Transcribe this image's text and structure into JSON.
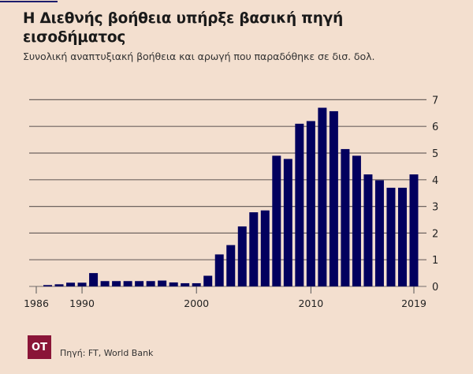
{
  "header": {
    "title": "Η Διεθνής βοήθεια υπήρξε βασική πηγή εισοδήματος",
    "subtitle": "Συνολική αναπτυξιακή βοήθεια και αρωγή που παραδόθηκε σε δισ. δολ."
  },
  "footer": {
    "logo_text": "OT",
    "source": "Πηγή: FT, World Bank"
  },
  "colors": {
    "background": "#f3dfcf",
    "bar": "#02005e",
    "gridline": "#6e6460",
    "logo": "#8a1538",
    "accent_line": "#1d1d6e"
  },
  "chart_data": {
    "type": "bar",
    "title": "Η Διεθνής βοήθεια υπήρξε βασική πηγή εισοδήματος",
    "subtitle": "Συνολική αναπτυξιακή βοήθεια και αρωγή που παραδόθηκε σε δισ. δολ.",
    "xlabel": "",
    "ylabel": "",
    "categories": [
      1986,
      1987,
      1988,
      1989,
      1990,
      1991,
      1992,
      1993,
      1994,
      1995,
      1996,
      1997,
      1998,
      1999,
      2000,
      2001,
      2002,
      2003,
      2004,
      2005,
      2006,
      2007,
      2008,
      2009,
      2010,
      2011,
      2012,
      2013,
      2014,
      2015,
      2016,
      2017,
      2018,
      2019
    ],
    "values": [
      0,
      0.05,
      0.08,
      0.14,
      0.14,
      0.5,
      0.2,
      0.2,
      0.2,
      0.2,
      0.2,
      0.22,
      0.15,
      0.12,
      0.12,
      0.4,
      1.2,
      1.55,
      2.25,
      2.78,
      2.85,
      4.9,
      4.78,
      6.1,
      6.2,
      6.7,
      6.57,
      5.15,
      4.9,
      4.2,
      3.98,
      3.7,
      3.7,
      4.2
    ],
    "x_ticks": [
      1986,
      1990,
      2000,
      2010,
      2019
    ],
    "y_ticks": [
      0,
      1,
      2,
      3,
      4,
      5,
      6,
      7
    ],
    "ylim": [
      0,
      7
    ],
    "y_axis_side": "right",
    "grid": true,
    "source": "Πηγή: FT, World Bank"
  }
}
